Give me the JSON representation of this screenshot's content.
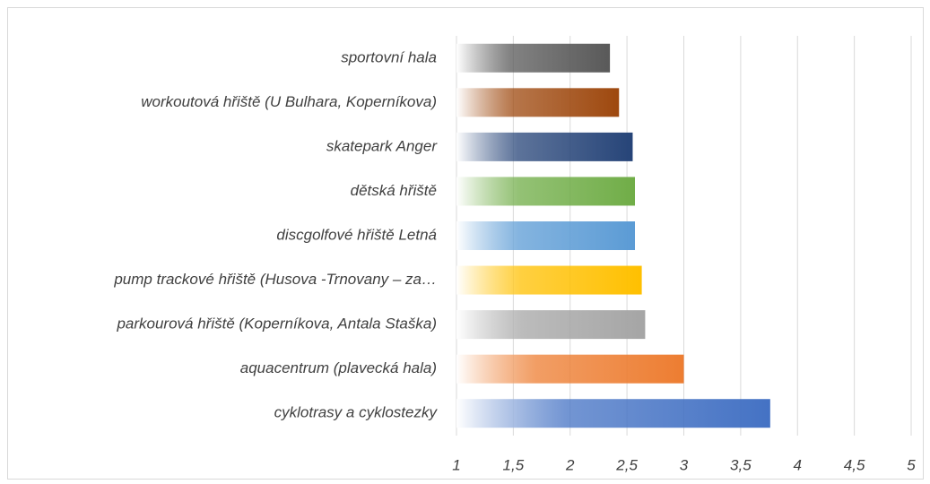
{
  "chart_data": {
    "type": "hbar",
    "categories": [
      "sportovní hala",
      "workoutová hřiště (U Bulhara, Koperníkova)",
      "skatepark Anger",
      "dětská hřiště",
      "discgolfové hřiště Letná",
      "pump trackové hřiště (Husova -Trnovany – za…",
      "parkourová hřiště (Koperníkova, Antala Staška)",
      "aquacentrum (plavecká hala)",
      "cyklotrasy a cyklostezky"
    ],
    "values": [
      2.35,
      2.43,
      2.55,
      2.57,
      2.57,
      2.63,
      2.66,
      3.0,
      3.76
    ],
    "colors": [
      "#595959",
      "#9e480e",
      "#264478",
      "#70ad47",
      "#5b9bd5",
      "#ffc000",
      "#a5a5a5",
      "#ed7d31",
      "#4472c4"
    ],
    "xlim": [
      1,
      5
    ],
    "xticks": [
      1,
      {
        "value": 1.5,
        "label": "1,5"
      },
      2,
      {
        "value": 2.5,
        "label": "2,5"
      },
      3,
      {
        "value": 3.5,
        "label": "3,5"
      },
      4,
      {
        "value": 4.5,
        "label": "4,5"
      },
      5
    ],
    "grid": true
  }
}
